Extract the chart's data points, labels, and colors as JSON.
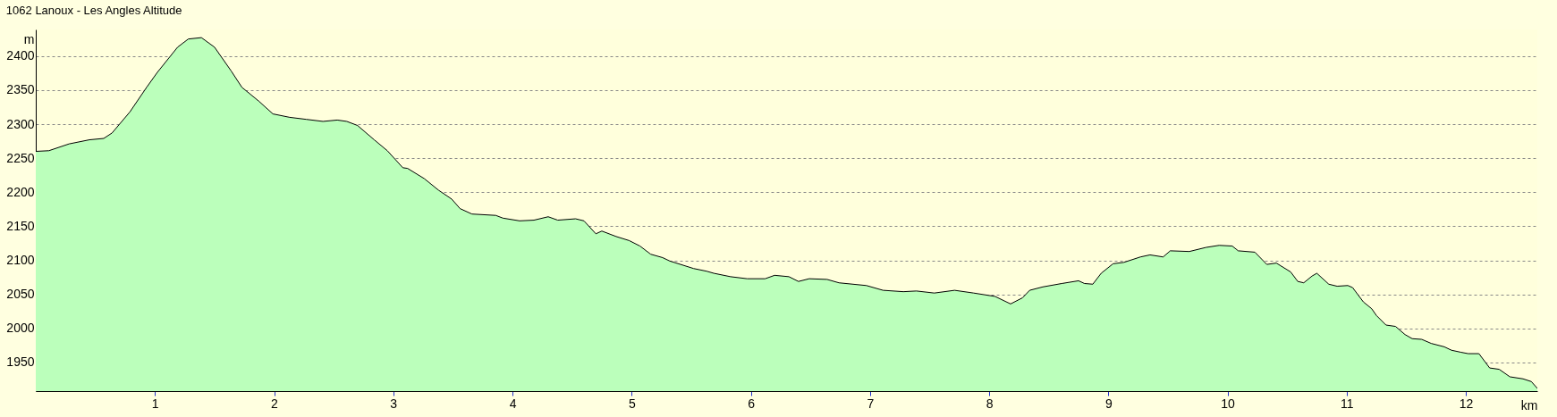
{
  "chart_data": {
    "type": "area",
    "title": "1062 Lanoux - Les Angles Altitude",
    "xlabel": "km",
    "ylabel": "m",
    "xlim": [
      0,
      12.6
    ],
    "ylim": [
      1908,
      2439
    ],
    "xticks": [
      1,
      2,
      3,
      4,
      5,
      6,
      7,
      8,
      9,
      10,
      11,
      12
    ],
    "yticks": [
      1950,
      2000,
      2050,
      2100,
      2150,
      2200,
      2250,
      2300,
      2350,
      2400
    ],
    "grid": "y",
    "series": [
      {
        "color": "#bbffbb",
        "x": [
          0,
          0.11,
          0.28,
          0.45,
          0.57,
          0.64,
          0.79,
          0.93,
          1.02,
          1.19,
          1.28,
          1.39,
          1.5,
          1.64,
          1.73,
          1.87,
          1.99,
          2.13,
          2.27,
          2.41,
          2.53,
          2.61,
          2.7,
          2.84,
          2.95,
          3.08,
          3.12,
          3.26,
          3.38,
          3.49,
          3.56,
          3.66,
          3.86,
          3.92,
          4.06,
          4.18,
          4.3,
          4.38,
          4.53,
          4.6,
          4.7,
          4.75,
          4.87,
          4.98,
          5.07,
          5.16,
          5.26,
          5.32,
          5.52,
          5.63,
          5.69,
          5.83,
          5.97,
          6.12,
          6.2,
          6.32,
          6.4,
          6.49,
          6.64,
          6.74,
          6.97,
          7.11,
          7.28,
          7.39,
          7.54,
          7.71,
          7.87,
          8.05,
          8.18,
          8.28,
          8.34,
          8.45,
          8.61,
          8.75,
          8.8,
          8.87,
          8.94,
          9.04,
          9.13,
          9.27,
          9.35,
          9.46,
          9.52,
          9.68,
          9.82,
          9.93,
          10.04,
          10.09,
          10.23,
          10.33,
          10.41,
          10.53,
          10.59,
          10.64,
          10.71,
          10.75,
          10.85,
          10.92,
          11.01,
          11.05,
          11.14,
          11.21,
          11.25,
          11.33,
          11.41,
          11.49,
          11.55,
          11.63,
          11.71,
          11.82,
          11.88,
          11.96,
          12.02,
          12.11,
          12.2,
          12.28,
          12.37,
          12.48,
          12.55,
          12.6
        ],
        "values": [
          2260,
          2261,
          2271,
          2277,
          2279,
          2287,
          2318,
          2354,
          2376,
          2413,
          2425,
          2427,
          2413,
          2378,
          2354,
          2334,
          2315,
          2310,
          2307,
          2304,
          2306,
          2304,
          2298,
          2277,
          2261,
          2236,
          2235,
          2220,
          2203,
          2190,
          2176,
          2168,
          2166,
          2162,
          2158,
          2159,
          2164,
          2159,
          2161,
          2158,
          2139,
          2143,
          2135,
          2129,
          2121,
          2109,
          2104,
          2099,
          2088,
          2084,
          2081,
          2076,
          2073,
          2073,
          2078,
          2076,
          2069,
          2073,
          2072,
          2067,
          2063,
          2056,
          2054,
          2055,
          2052,
          2056,
          2052,
          2047,
          2036,
          2045,
          2056,
          2061,
          2066,
          2070,
          2066,
          2065,
          2081,
          2095,
          2097,
          2105,
          2108,
          2105,
          2114,
          2113,
          2119,
          2122,
          2121,
          2114,
          2112,
          2094,
          2096,
          2083,
          2069,
          2067,
          2077,
          2081,
          2065,
          2062,
          2063,
          2060,
          2039,
          2029,
          2019,
          2005,
          2003,
          1991,
          1985,
          1984,
          1978,
          1973,
          1968,
          1965,
          1963,
          1963,
          1942,
          1940,
          1929,
          1926,
          1922,
          1912
        ]
      }
    ]
  }
}
